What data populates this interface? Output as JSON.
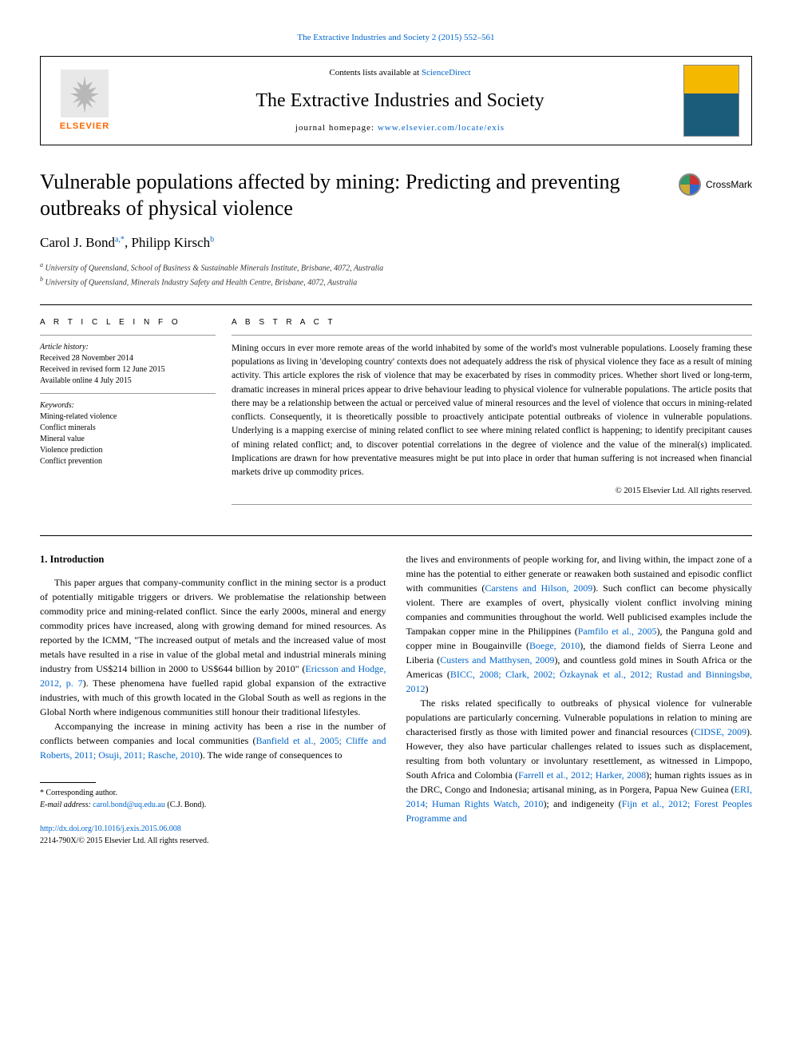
{
  "top_link": "The Extractive Industries and Society 2 (2015) 552–561",
  "header": {
    "contents_prefix": "Contents lists available at ",
    "contents_link": "ScienceDirect",
    "journal_name": "The Extractive Industries and Society",
    "homepage_prefix": "journal homepage: ",
    "homepage_link": "www.elsevier.com/locate/exis",
    "elsevier_label": "ELSEVIER"
  },
  "crossmark_label": "CrossMark",
  "title": "Vulnerable populations affected by mining: Predicting and preventing outbreaks of physical violence",
  "authors_html": "Carol J. Bond<sup>a,*</sup>, Philipp Kirsch<sup>b</sup>",
  "affiliations": {
    "a": "University of Queensland, School of Business & Sustainable Minerals Institute, Brisbane, 4072, Australia",
    "b": "University of Queensland, Minerals Industry Safety and Health Centre, Brisbane, 4072, Australia"
  },
  "article_info": {
    "heading": "A R T I C L E   I N F O",
    "history_label": "Article history:",
    "received": "Received 28 November 2014",
    "revised": "Received in revised form 12 June 2015",
    "online": "Available online 4 July 2015",
    "keywords_label": "Keywords:",
    "keywords": [
      "Mining-related violence",
      "Conflict minerals",
      "Mineral value",
      "Violence prediction",
      "Conflict prevention"
    ]
  },
  "abstract": {
    "heading": "A B S T R A C T",
    "text": "Mining occurs in ever more remote areas of the world inhabited by some of the world's most vulnerable populations. Loosely framing these populations as living in 'developing country' contexts does not adequately address the risk of physical violence they face as a result of mining activity. This article explores the risk of violence that may be exacerbated by rises in commodity prices. Whether short lived or long-term, dramatic increases in mineral prices appear to drive behaviour leading to physical violence for vulnerable populations. The article posits that there may be a relationship between the actual or perceived value of mineral resources and the level of violence that occurs in mining-related conflicts. Consequently, it is theoretically possible to proactively anticipate potential outbreaks of violence in vulnerable populations. Underlying is a mapping exercise of mining related conflict to see where mining related conflict is happening; to identify precipitant causes of mining related conflict; and, to discover potential correlations in the degree of violence and the value of the mineral(s) implicated. Implications are drawn for how preventative measures might be put into place in order that human suffering is not increased when financial markets drive up commodity prices.",
    "copyright": "© 2015 Elsevier Ltd. All rights reserved."
  },
  "section1": {
    "heading": "1. Introduction",
    "p1_pre": "This paper argues that company-community conflict in the mining sector is a product of potentially mitigable triggers or drivers. We problematise the relationship between commodity price and mining-related conflict. Since the early 2000s, mineral and energy commodity prices have increased, along with growing demand for mined resources. As reported by the ICMM, \"The increased output of metals and the increased value of most metals have resulted in a rise in value of the global metal and industrial minerals mining industry from US$214 billion in 2000 to US$644 billion by 2010\" (",
    "p1_link": "Ericsson and Hodge, 2012, p. 7",
    "p1_post": "). These phenomena have fuelled rapid global expansion of the extractive industries, with much of this growth located in the Global South as well as regions in the Global North where indigenous communities still honour their traditional lifestyles.",
    "p2_pre": "Accompanying the increase in mining activity has been a rise in the number of conflicts between companies and local communities (",
    "p2_link": "Banfield et al., 2005; Cliffe and Roberts, 2011; Osuji, 2011; Rasche, 2010",
    "p2_post": "). The wide range of consequences to",
    "p3_pre": "the lives and environments of people working for, and living within, the impact zone of a mine has the potential to either generate or reawaken both sustained and episodic conflict with communities (",
    "p3_link1": "Carstens and Hilson, 2009",
    "p3_mid1": "). Such conflict can become physically violent. There are examples of overt, physically violent conflict involving mining companies and communities throughout the world. Well publicised examples include the Tampakan copper mine in the Philippines (",
    "p3_link2": "Pamfilo et al., 2005",
    "p3_mid2": "), the Panguna gold and copper mine in Bougainville (",
    "p3_link3": "Boege, 2010",
    "p3_mid3": "), the diamond fields of Sierra Leone and Liberia (",
    "p3_link4": "Custers and Matthysen, 2009",
    "p3_mid4": "), and countless gold mines in South Africa or the Americas (",
    "p3_link5": "BICC, 2008; Clark, 2002; Özkaynak et al., 2012; Rustad and Binningsbø, 2012",
    "p3_post": ")",
    "p4_pre": "The risks related specifically to outbreaks of physical violence for vulnerable populations are particularly concerning. Vulnerable populations in relation to mining are characterised firstly as those with limited power and financial resources (",
    "p4_link1": "CIDSE, 2009",
    "p4_mid1": "). However, they also have particular challenges related to issues such as displacement, resulting from both voluntary or involuntary resettlement, as witnessed in Limpopo, South Africa and Colombia (",
    "p4_link2": "Farrell et al., 2012; Harker, 2008",
    "p4_mid2": "); human rights issues as in the DRC, Congo and Indonesia; artisanal mining, as in Porgera, Papua New Guinea (",
    "p4_link3": "ERI, 2014; Human Rights Watch, 2010",
    "p4_mid3": "); and indigeneity (",
    "p4_link4": "Fijn et al., 2012; Forest Peoples Programme and"
  },
  "footnote": {
    "label": "* Corresponding author.",
    "email_label": "E-mail address: ",
    "email": "carol.bond@uq.edu.au",
    "email_suffix": " (C.J. Bond)."
  },
  "doi": {
    "link": "http://dx.doi.org/10.1016/j.exis.2015.06.008",
    "issn_line": "2214-790X/© 2015 Elsevier Ltd. All rights reserved."
  },
  "colors": {
    "link": "#0066cc",
    "text": "#000000",
    "elsevier_orange": "#ff6600"
  }
}
